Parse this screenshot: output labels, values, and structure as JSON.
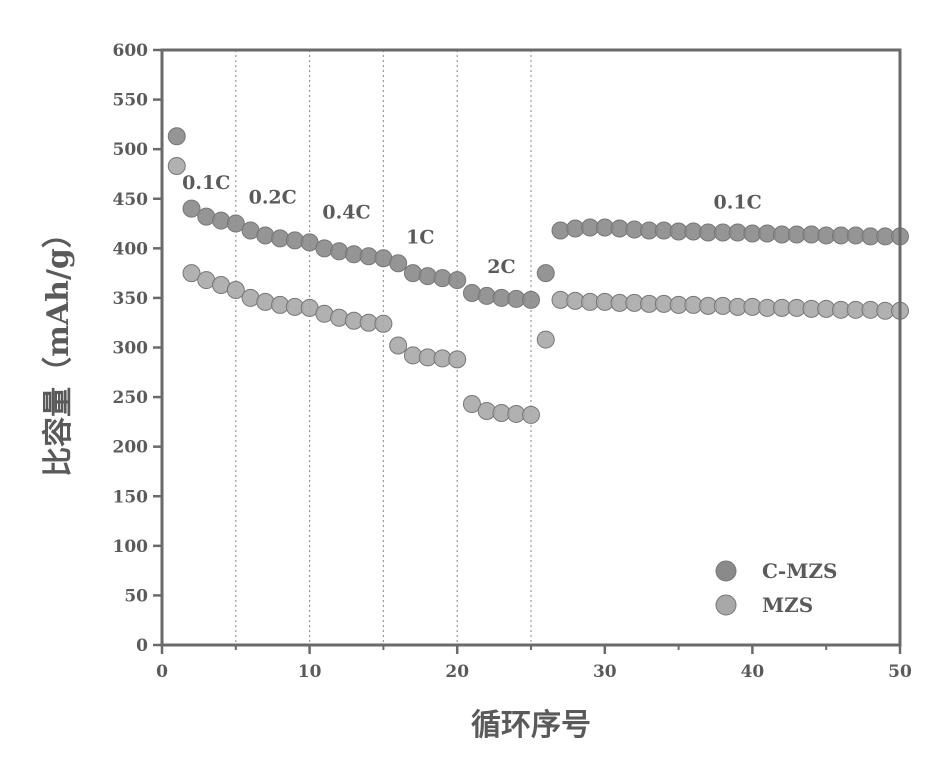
{
  "chart_data": {
    "type": "scatter",
    "xlabel": "循环序号",
    "ylabel": "比容量（mAh/g）",
    "xlim": [
      0,
      50
    ],
    "ylim": [
      0,
      600
    ],
    "xticks": [
      0,
      10,
      20,
      30,
      40,
      50
    ],
    "yticks": [
      0,
      50,
      100,
      150,
      200,
      250,
      300,
      350,
      400,
      450,
      500,
      550,
      600
    ],
    "rate_boundaries": [
      5,
      10,
      15,
      20,
      25
    ],
    "rate_labels": [
      {
        "text": "0.1C",
        "x": 3,
        "y": 460
      },
      {
        "text": "0.2C",
        "x": 7.5,
        "y": 445
      },
      {
        "text": "0.4C",
        "x": 12.5,
        "y": 430
      },
      {
        "text": "1C",
        "x": 17.5,
        "y": 405
      },
      {
        "text": "2C",
        "x": 23,
        "y": 375
      },
      {
        "text": "0.1C",
        "x": 39,
        "y": 440
      }
    ],
    "legend_position": "bottom-right",
    "grid": false,
    "series": [
      {
        "name": "C-MZS",
        "color": "#8a8a8a",
        "x": [
          1,
          2,
          3,
          4,
          5,
          6,
          7,
          8,
          9,
          10,
          11,
          12,
          13,
          14,
          15,
          16,
          17,
          18,
          19,
          20,
          21,
          22,
          23,
          24,
          25,
          26,
          27,
          28,
          29,
          30,
          31,
          32,
          33,
          34,
          35,
          36,
          37,
          38,
          39,
          40,
          41,
          42,
          43,
          44,
          45,
          46,
          47,
          48,
          49,
          50
        ],
        "values": [
          513,
          440,
          432,
          428,
          425,
          418,
          413,
          410,
          408,
          406,
          400,
          397,
          394,
          392,
          390,
          385,
          375,
          372,
          370,
          368,
          355,
          352,
          350,
          349,
          348,
          375,
          418,
          420,
          421,
          421,
          420,
          419,
          418,
          418,
          417,
          417,
          416,
          416,
          416,
          415,
          415,
          414,
          414,
          414,
          413,
          413,
          413,
          412,
          412,
          412
        ]
      },
      {
        "name": "MZS",
        "color": "#a8a8a8",
        "x": [
          1,
          2,
          3,
          4,
          5,
          6,
          7,
          8,
          9,
          10,
          11,
          12,
          13,
          14,
          15,
          16,
          17,
          18,
          19,
          20,
          21,
          22,
          23,
          24,
          25,
          26,
          27,
          28,
          29,
          30,
          31,
          32,
          33,
          34,
          35,
          36,
          37,
          38,
          39,
          40,
          41,
          42,
          43,
          44,
          45,
          46,
          47,
          48,
          49,
          50
        ],
        "values": [
          483,
          375,
          368,
          363,
          358,
          350,
          346,
          343,
          341,
          340,
          334,
          330,
          327,
          325,
          324,
          302,
          292,
          290,
          289,
          288,
          243,
          236,
          234,
          233,
          232,
          308,
          348,
          347,
          346,
          346,
          345,
          345,
          344,
          344,
          343,
          343,
          342,
          342,
          341,
          341,
          340,
          340,
          340,
          339,
          339,
          338,
          338,
          338,
          337,
          337
        ]
      }
    ]
  }
}
